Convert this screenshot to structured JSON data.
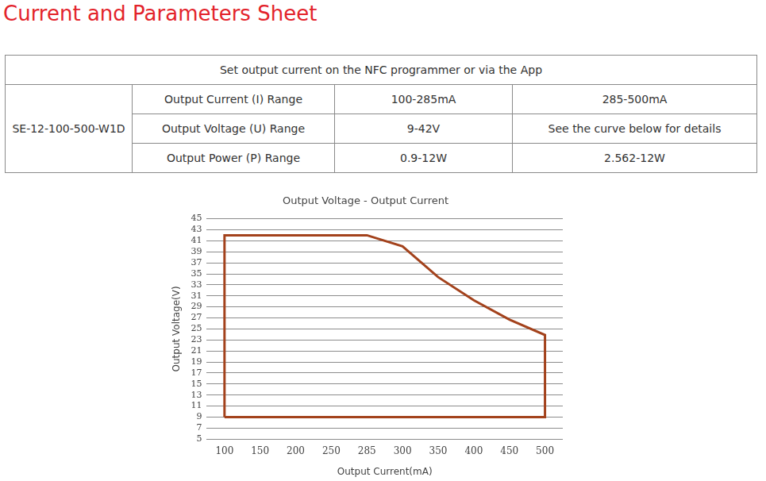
{
  "header": {
    "title": "Current and Parameters Sheet"
  },
  "table": {
    "caption": "Set output current on the NFC programmer or via the App",
    "model": "SE-12-100-500-W1D",
    "rows": [
      [
        "Output Current (I) Range",
        "100-285mA",
        "285-500mA"
      ],
      [
        "Output Voltage (U) Range",
        "9-42V",
        "See the curve below for details"
      ],
      [
        "Output Power (P) Range",
        "0.9-12W",
        "2.562-12W"
      ]
    ]
  },
  "chart_data": {
    "type": "line",
    "title": "Output Voltage - Output Current",
    "x_label": "Output Current(mA)",
    "y_label": "Output Voltage(V)",
    "categories": [
      "100",
      "150",
      "200",
      "250",
      "285",
      "300",
      "350",
      "400",
      "450",
      "500"
    ],
    "x": [
      "100",
      "100",
      "285",
      "300",
      "350",
      "400",
      "450",
      "500",
      "500",
      "100"
    ],
    "values": [
      9,
      42,
      42,
      40,
      34.4,
      30.2,
      26.7,
      23.9,
      9,
      9
    ],
    "color": "#a3421c",
    "ylim": [
      5,
      45
    ],
    "yticks": [
      5,
      7,
      9,
      11,
      13,
      15,
      17,
      19,
      21,
      23,
      25,
      27,
      29,
      31,
      33,
      35,
      37,
      39,
      41,
      43,
      45
    ],
    "grid": true
  }
}
